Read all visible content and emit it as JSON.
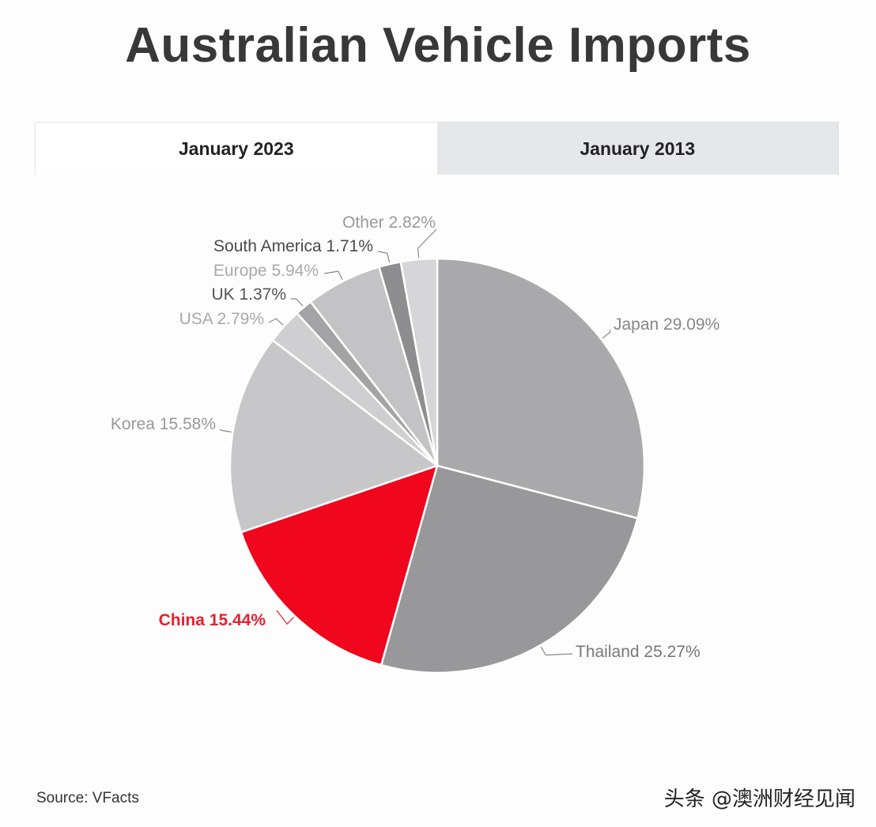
{
  "title": "Australian Vehicle Imports",
  "tabs": [
    {
      "label": "January 2023",
      "active": true
    },
    {
      "label": "January 2013",
      "active": false
    }
  ],
  "chart_data": {
    "type": "pie",
    "title": "Australian Vehicle Imports",
    "unit": "%",
    "slices": [
      {
        "name": "Japan",
        "value": 29.09,
        "label": "Japan 29.09%",
        "color": "#a9a9ab",
        "label_color": "#888888"
      },
      {
        "name": "Thailand",
        "value": 25.27,
        "label": "Thailand 25.27%",
        "color": "#98989a",
        "label_color": "#777777"
      },
      {
        "name": "China",
        "value": 15.44,
        "label": "China 15.44%",
        "color": "#f0061d",
        "label_color": "#e8202f"
      },
      {
        "name": "Korea",
        "value": 15.58,
        "label": "Korea 15.58%",
        "color": "#c7c7c9",
        "label_color": "#999999"
      },
      {
        "name": "USA",
        "value": 2.79,
        "label": "USA 2.79%",
        "color": "#cfcfd1",
        "label_color": "#aaaaaa"
      },
      {
        "name": "UK",
        "value": 1.37,
        "label": "UK 1.37%",
        "color": "#a3a3a5",
        "label_color": "#555555"
      },
      {
        "name": "Europe",
        "value": 5.94,
        "label": "Europe 5.94%",
        "color": "#c3c3c5",
        "label_color": "#aaaaaa"
      },
      {
        "name": "South America",
        "value": 1.71,
        "label": "South America 1.71%",
        "color": "#8e8e90",
        "label_color": "#4a4a4a"
      },
      {
        "name": "Other",
        "value": 2.82,
        "label": "Other 2.82%",
        "color": "#d6d6d8",
        "label_color": "#999999"
      }
    ]
  },
  "source": "Source: VFacts",
  "watermark": "头条 @澳洲财经见闻"
}
